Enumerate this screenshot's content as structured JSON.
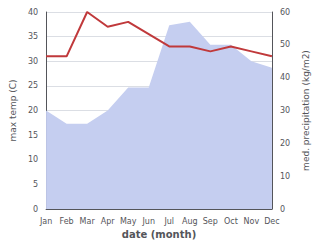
{
  "chart_data": {
    "type": "line",
    "xlabel": "date (month)",
    "ylabel": "max temp (C)",
    "y2label": "med. precipitation (kg/m2)",
    "categories": [
      "Jan",
      "Feb",
      "Mar",
      "Apr",
      "May",
      "Jun",
      "Jul",
      "Aug",
      "Sep",
      "Oct",
      "Nov",
      "Dec"
    ],
    "series": [
      {
        "type": "area",
        "color": "#c5cef0",
        "axis": "y2",
        "values": [
          30,
          26,
          26,
          30,
          37,
          37,
          56,
          57,
          50,
          50,
          45,
          43
        ]
      },
      {
        "type": "line",
        "color": "#c0393b",
        "values": [
          31.0,
          31.0,
          40.0,
          37.0,
          38.0,
          35.5,
          33.0,
          33.0,
          32.0,
          33.0,
          32.0,
          31.0
        ]
      }
    ],
    "ylim": [
      0,
      40
    ],
    "yticks": [
      0,
      5,
      10,
      15,
      20,
      25,
      30,
      35,
      40
    ],
    "y2lim": [
      0,
      60
    ],
    "y2ticks": [
      0,
      10,
      20,
      30,
      40,
      50,
      60
    ],
    "grid": true
  }
}
